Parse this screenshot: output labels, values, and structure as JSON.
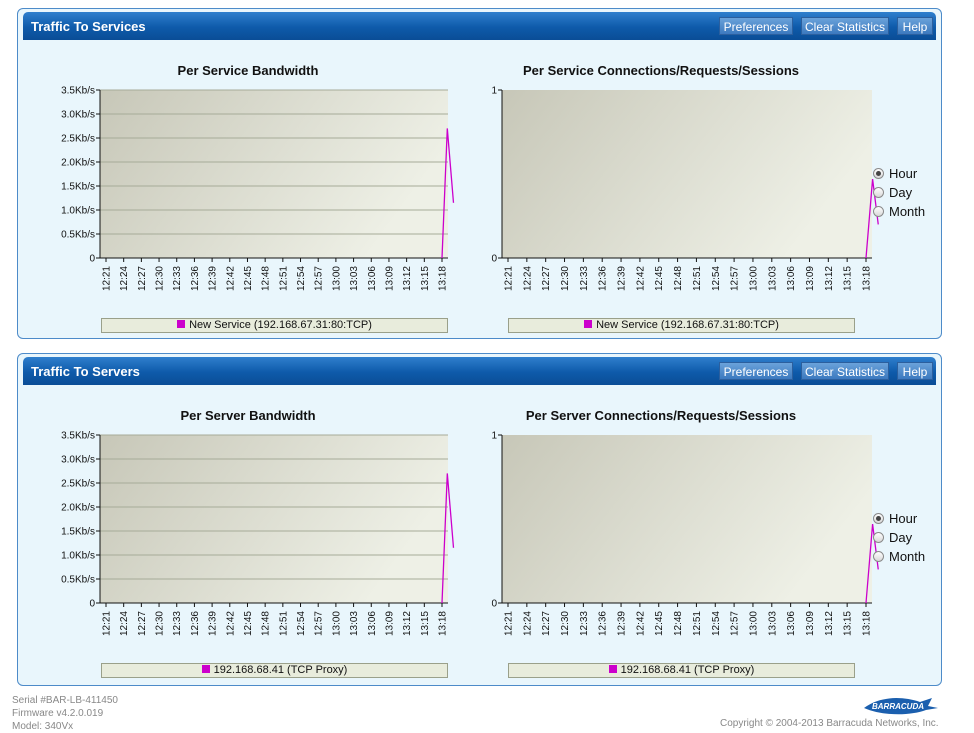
{
  "panels": [
    {
      "title": "Traffic To Services",
      "buttons": {
        "preferences": "Preferences",
        "clear": "Clear Statistics",
        "help": "Help"
      },
      "charts": [
        {
          "title": "Per Service Bandwidth",
          "legend": "New Service (192.168.67.31:80:TCP)"
        },
        {
          "title": "Per Service Connections/Requests/Sessions",
          "legend": "New Service (192.168.67.31:80:TCP)"
        }
      ],
      "radios": [
        "Hour",
        "Day",
        "Month"
      ],
      "selected": "Hour"
    },
    {
      "title": "Traffic To Servers",
      "buttons": {
        "preferences": "Preferences",
        "clear": "Clear Statistics",
        "help": "Help"
      },
      "charts": [
        {
          "title": "Per Server Bandwidth",
          "legend": "192.168.68.41 (TCP Proxy)"
        },
        {
          "title": "Per Server Connections/Requests/Sessions",
          "legend": "192.168.68.41 (TCP Proxy)"
        }
      ],
      "radios": [
        "Hour",
        "Day",
        "Month"
      ],
      "selected": "Hour"
    }
  ],
  "chart_data": [
    {
      "type": "line",
      "title": "Per Service Bandwidth",
      "x": [
        "12:21",
        "12:24",
        "12:27",
        "12:30",
        "12:33",
        "12:36",
        "12:39",
        "12:42",
        "12:45",
        "12:48",
        "12:51",
        "12:54",
        "12:57",
        "13:00",
        "13:03",
        "13:06",
        "13:09",
        "13:12",
        "13:15",
        "13:18"
      ],
      "y_ticks": [
        "0",
        "0.5Kb/s",
        "1.0Kb/s",
        "1.5Kb/s",
        "2.0Kb/s",
        "2.5Kb/s",
        "3.0Kb/s",
        "3.5Kb/s"
      ],
      "ylim": [
        0,
        3.5
      ],
      "grid": true,
      "series": [
        {
          "name": "New Service (192.168.67.31:80:TCP)",
          "color": "#cc00cc",
          "points": [
            [
              19.0,
              0
            ],
            [
              19.3,
              2.7
            ],
            [
              19.65,
              1.15
            ]
          ]
        }
      ]
    },
    {
      "type": "line",
      "title": "Per Service Connections/Requests/Sessions",
      "x": [
        "12:21",
        "12:24",
        "12:27",
        "12:30",
        "12:33",
        "12:36",
        "12:39",
        "12:42",
        "12:45",
        "12:48",
        "12:51",
        "12:54",
        "12:57",
        "13:00",
        "13:03",
        "13:06",
        "13:09",
        "13:12",
        "13:15",
        "13:18"
      ],
      "y_ticks": [
        "0",
        "1"
      ],
      "ylim": [
        0,
        1
      ],
      "grid": false,
      "series": [
        {
          "name": "New Service (192.168.67.31:80:TCP)",
          "color": "#cc00cc",
          "points": [
            [
              19.0,
              0
            ],
            [
              19.35,
              0.47
            ],
            [
              19.65,
              0.2
            ]
          ]
        }
      ]
    },
    {
      "type": "line",
      "title": "Per Server Bandwidth",
      "x": [
        "12:21",
        "12:24",
        "12:27",
        "12:30",
        "12:33",
        "12:36",
        "12:39",
        "12:42",
        "12:45",
        "12:48",
        "12:51",
        "12:54",
        "12:57",
        "13:00",
        "13:03",
        "13:06",
        "13:09",
        "13:12",
        "13:15",
        "13:18"
      ],
      "y_ticks": [
        "0",
        "0.5Kb/s",
        "1.0Kb/s",
        "1.5Kb/s",
        "2.0Kb/s",
        "2.5Kb/s",
        "3.0Kb/s",
        "3.5Kb/s"
      ],
      "ylim": [
        0,
        3.5
      ],
      "grid": true,
      "series": [
        {
          "name": "192.168.68.41 (TCP Proxy)",
          "color": "#cc00cc",
          "points": [
            [
              19.0,
              0
            ],
            [
              19.3,
              2.7
            ],
            [
              19.65,
              1.15
            ]
          ]
        }
      ]
    },
    {
      "type": "line",
      "title": "Per Server Connections/Requests/Sessions",
      "x": [
        "12:21",
        "12:24",
        "12:27",
        "12:30",
        "12:33",
        "12:36",
        "12:39",
        "12:42",
        "12:45",
        "12:48",
        "12:51",
        "12:54",
        "12:57",
        "13:00",
        "13:03",
        "13:06",
        "13:09",
        "13:12",
        "13:15",
        "13:18"
      ],
      "y_ticks": [
        "0",
        "1"
      ],
      "ylim": [
        0,
        1
      ],
      "grid": false,
      "series": [
        {
          "name": "192.168.68.41 (TCP Proxy)",
          "color": "#cc00cc",
          "points": [
            [
              19.0,
              0
            ],
            [
              19.35,
              0.47
            ],
            [
              19.65,
              0.2
            ]
          ]
        }
      ]
    }
  ],
  "footer": {
    "serial": "Serial #BAR-LB-411450",
    "firmware": "Firmware v4.2.0.019",
    "model": "Model: 340Vx",
    "copyright": "Copyright © 2004-2013 Barracuda Networks, Inc."
  },
  "logo": {
    "text": "BARRACUDA",
    "color": "#1b5fae"
  }
}
